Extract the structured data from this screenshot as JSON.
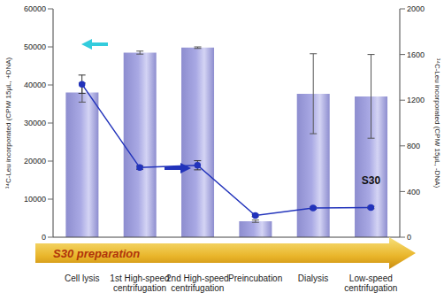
{
  "chart_data": {
    "type": "bar",
    "categories": [
      "Cell lysis",
      "1st High-speed centrifugation",
      "2nd High-speed centrifugation",
      "Preincubation",
      "Dialysis",
      "Low-speed centrifugation"
    ],
    "ylabel": "¹⁴C-Leu incorporated (CPM/ 15μL, +DNA)",
    "y2label": "¹⁴C-Leu incorporated (CPM/ 15μL, -DNA)",
    "ylim": [
      0,
      60000
    ],
    "yticks": [
      0,
      10000,
      20000,
      30000,
      40000,
      50000,
      60000
    ],
    "y2lim": [
      0,
      2000
    ],
    "y2ticks": [
      0,
      400,
      800,
      1200,
      1600,
      2000
    ],
    "grid": false,
    "series": [
      {
        "type": "bar",
        "color": "#a9a9e4",
        "values": [
          38000,
          48500,
          49800,
          4200,
          37700,
          37000
        ],
        "errors": [
          2500,
          400,
          200,
          300,
          10500,
          11000
        ]
      },
      {
        "type": "line",
        "axis": "y2",
        "color": "#2233bb",
        "marker": "circle",
        "values": [
          1340,
          610,
          630,
          190,
          255,
          260
        ],
        "errors": [
          80,
          15,
          40,
          10,
          10,
          10
        ]
      }
    ],
    "annotations": [
      {
        "text": "S30",
        "category": "Low-speed centrifugation"
      },
      {
        "text": "S30 preparation"
      }
    ]
  }
}
